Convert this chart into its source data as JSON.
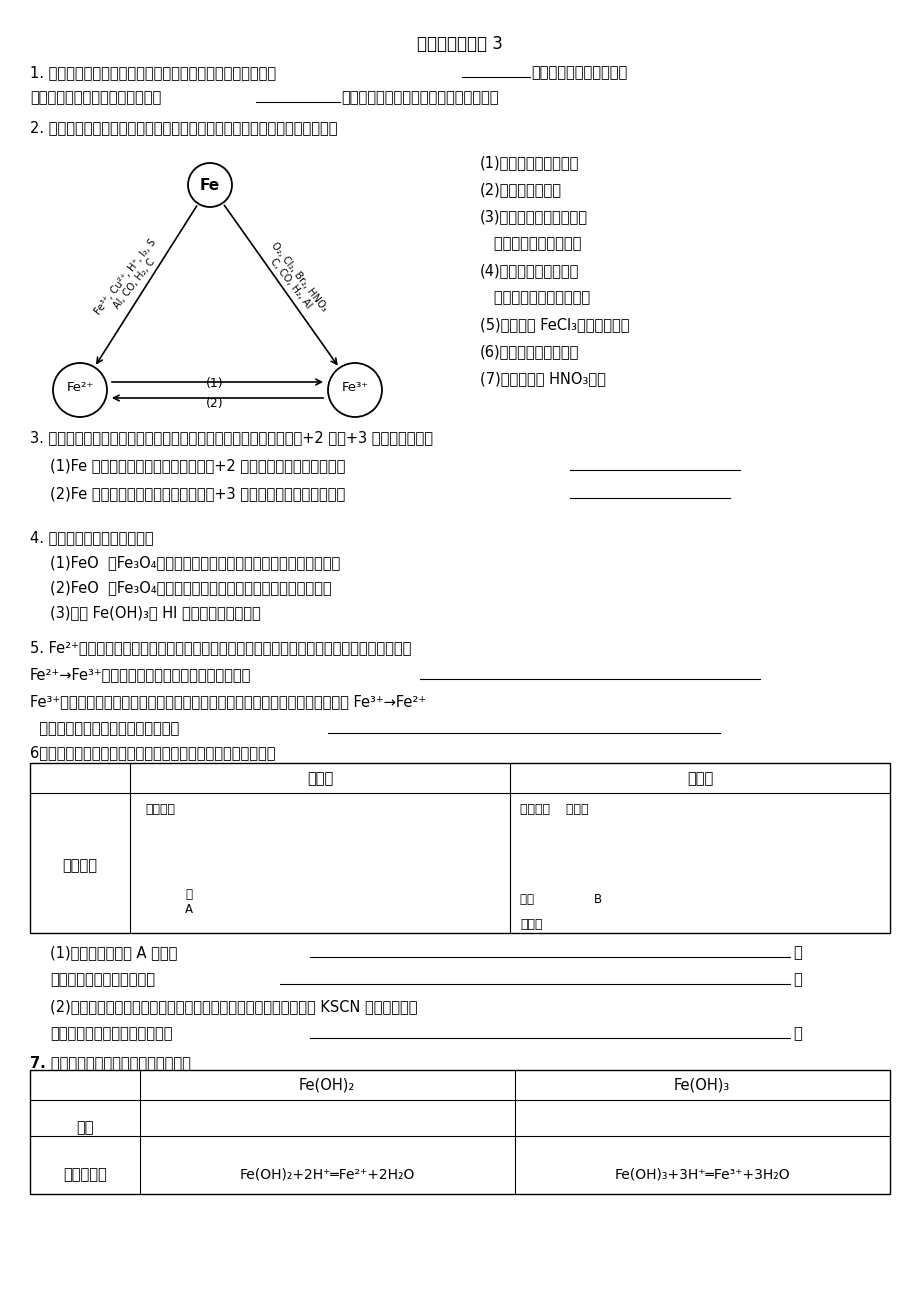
{
  "title": "金属的化学性质 3",
  "bg_color": "#ffffff",
  "q1_part1": "1. 铁是世界上用量最大的金属。纯铁具有金属的共性，如具有",
  "q1_blank1_end": "色金属光泽和良好的延展",
  "q1_part2": "性，是电和热的良导体，具有能被",
  "q1_blank2_end": "吸引的特性，纯铁有很强的抗腐蚀能力。",
  "q2_intro": "2. 铁的化学性质可用下图表示：试分析图中相关变化，完成下列化学方程式：",
  "q2_items": [
    "(1)在氧气中点燃细铁丝",
    "(2)溴水中加入铁粉",
    "(3)将铁粉和碘粉混合加热",
    "   将铁粉和硫粉混合加热",
    "(4)工业上用焦炭冶炼铁",
    "   工业上用铝热反应冶炼铁",
    "(5)工业上用 FeCl₃溶液腐蚀铜板",
    "(6)铁和高温水蒸气反应",
    "(7)铁和少量稀 HNO₃反应"
  ],
  "q3_intro": "3. 根据上图铁元素是典型的变价金属元素，它在化合物中主要表现为+2 价和+3 价，请归纳总结",
  "q3_1": "(1)Fe 单质通常与哪些氧化剂反应生成+2 价？写出有关反应的物质：",
  "q3_2": "(2)Fe 单质通常与哪些氧化剂反应生成+3 价？写出有关反应的物质：",
  "q4_intro": "4. 按要求写出下列化学方程式",
  "q4_1": "(1)FeO  、Fe₃O₄分别溶于足量稀盐酸，写出反应的离子方程式。",
  "q4_2": "(2)FeO  、Fe₃O₄分别溶于足量稀硝酸，写出反应的离子方程式",
  "q4_3": "(3)写出 Fe(OH)₃和 HI 反应的离子方程式。",
  "q5_1": "5. Fe²⁺处于铁的中间价态，既有氧化性又有还原性，通常以还原性为主，你知道哪些物质能使",
  "q5_2": "Fe²⁺→Fe³⁺？写出能使这个离子反应发生的物质：",
  "q5_3": "Fe³⁺处于铁的高价态，能与许多强还原性的物质发生反应，列举你知道的能实现 Fe³⁺→Fe²⁺",
  "q5_4": "  写出能使这个离子反应发生的物质：",
  "q6_intro": "6．铁与水蒸气反应，通常有以下两种装置，请思考以下问题：",
  "q6_dev1_label": "装置一",
  "q6_dev2_label": "装置二",
  "q6_exp_label": "实验装置",
  "q6_dev1_text1": "还原铁粉",
  "q6_dev1_text2": "水\nA",
  "q6_dev2_text1": "还原铁粉    湿棉花",
  "q6_dev2_text2": "火柴                B",
  "q6_dev2_text3": "肥皂液",
  "q6_q1a": "(1)方法一中，装置 A 的作用",
  "q6_q1b": "方法二中，装湿棉花的作用",
  "q6_q2a": "(2)实验完毕后，取出装置一的少量固体，溶于足量稀盐酸，再滴加 KSCN 溶液，溶液的",
  "q6_q2b": "颜色无明显变化，试解释原因：",
  "q7_intro": "7. 铁有两种氢氧化物，请比较并填空：",
  "q7_h1": "Fe(OH)₂",
  "q7_h2": "Fe(OH)₃",
  "q7_r1_label": "色态",
  "q7_r2_label": "与盐酸反应",
  "q7_r2_c1": "Fe(OH)₂+2H⁺═Fe²⁺+2H₂O",
  "q7_r2_c2": "Fe(OH)₃+3H⁺═Fe³⁺+3H₂O",
  "triangle_left_top": "Fe³⁺, Cu²⁺, H⁺, I₂, S",
  "triangle_left_bot": "Al, CO, H₂, C",
  "triangle_right_top": "O₂, Cl₂, Br₂, HNO₃",
  "triangle_right_bot": "C, CO, H₂, Al"
}
